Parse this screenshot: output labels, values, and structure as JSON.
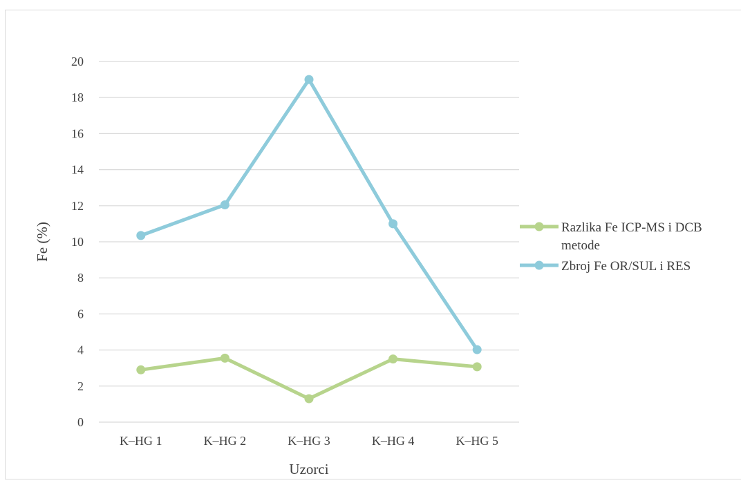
{
  "chart_data": {
    "type": "line",
    "categories": [
      "K–HG 1",
      "K–HG 2",
      "K–HG 3",
      "K–HG 4",
      "K–HG 5"
    ],
    "series": [
      {
        "name": "Razlika Fe ICP-MS i DCB metode",
        "name_lines": [
          "Razlika Fe ICP-MS i DCB",
          "metode"
        ],
        "color": "#b7d48c",
        "values": [
          2.9,
          3.55,
          1.3,
          3.5,
          3.07
        ]
      },
      {
        "name": "Zbroj Fe OR/SUL i RES",
        "name_lines": [
          "Zbroj Fe OR/SUL i RES"
        ],
        "color": "#8ecbdb",
        "values": [
          10.35,
          12.05,
          19.0,
          11.0,
          4.02
        ]
      }
    ],
    "xlabel": "Uzorci",
    "ylabel": "Fe (%)",
    "ylim": [
      0,
      20
    ],
    "yticks": [
      0,
      2,
      4,
      6,
      8,
      10,
      12,
      14,
      16,
      18,
      20
    ],
    "grid": true,
    "legend": "right",
    "gridline_color": "#d9d9d9"
  }
}
